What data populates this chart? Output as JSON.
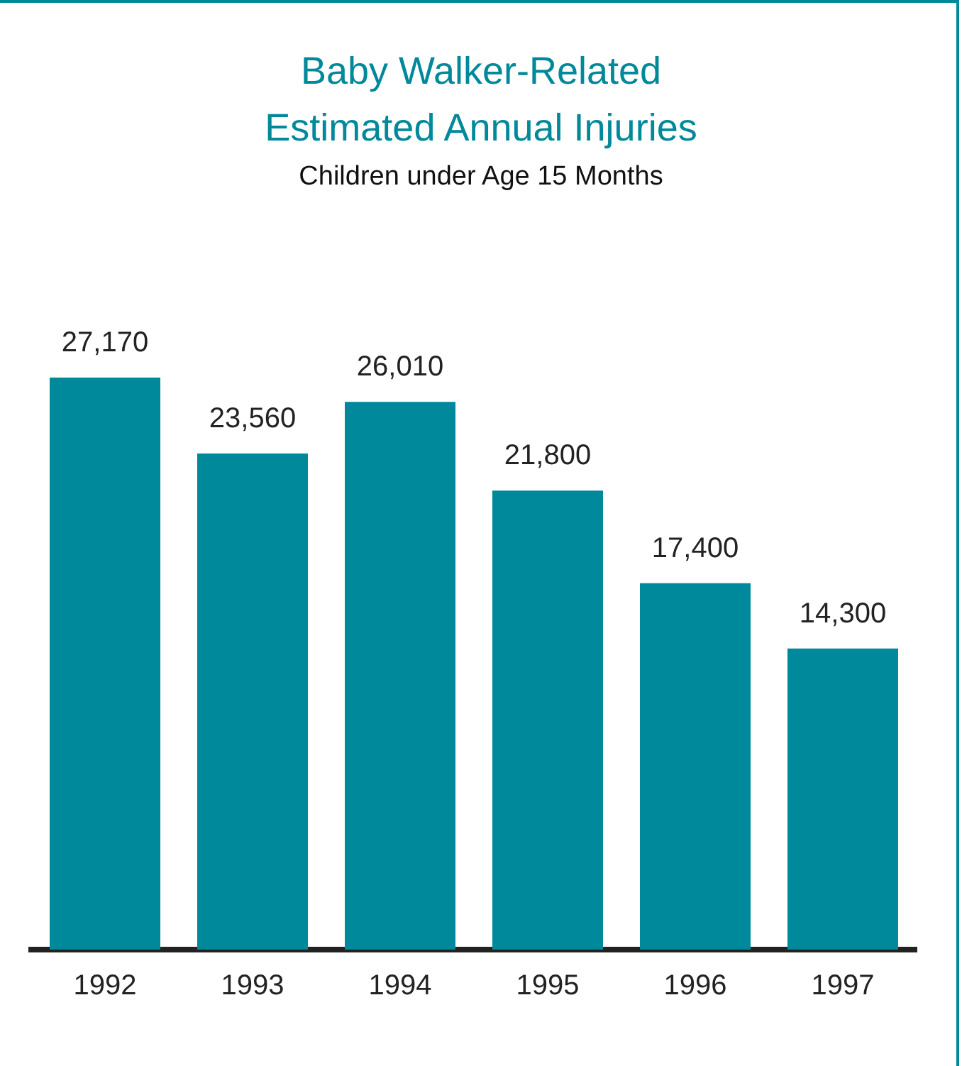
{
  "chart_data": {
    "type": "bar",
    "title": "Baby Walker-Related Estimated Annual Injuries",
    "subtitle": "Children under Age 15 Months",
    "categories": [
      "1992",
      "1993",
      "1994",
      "1995",
      "1996",
      "1997"
    ],
    "values": [
      27170,
      23560,
      26010,
      21800,
      17400,
      14300
    ],
    "value_labels": [
      "27,170",
      "23,560",
      "26,010",
      "21,800",
      "17,400",
      "14,300"
    ],
    "color": "#00889b",
    "grid": false,
    "legend": false
  }
}
